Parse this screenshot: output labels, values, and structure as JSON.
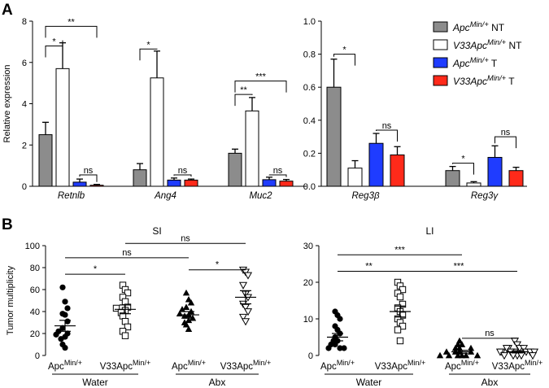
{
  "panel_labels": {
    "a": "A",
    "b": "B"
  },
  "chart_data": [
    {
      "type": "bar",
      "panel": "A-left",
      "ylabel": "Relative expression",
      "ylim": [
        0,
        8
      ],
      "yticks": [
        0,
        2,
        4,
        6,
        8
      ],
      "categories": [
        "Retnlb",
        "Ang4",
        "Muc2"
      ],
      "series": [
        {
          "name": "ApcMin/+ NT",
          "color": "#8c8c8c",
          "values": [
            2.5,
            0.8,
            1.6
          ],
          "errors": [
            0.6,
            0.3,
            0.2
          ]
        },
        {
          "name": "V33ApcMin/+ NT",
          "color": "#ffffff",
          "values": [
            5.7,
            5.25,
            3.65
          ],
          "errors": [
            1.25,
            1.3,
            0.65
          ]
        },
        {
          "name": "ApcMin/+ T",
          "color": "#1f3cff",
          "values": [
            0.2,
            0.3,
            0.32
          ],
          "errors": [
            0.15,
            0.1,
            0.12
          ]
        },
        {
          "name": "V33ApcMin/+ T",
          "color": "#ff2a1a",
          "values": [
            0.05,
            0.3,
            0.25
          ],
          "errors": [
            0.04,
            0.05,
            0.08
          ]
        }
      ],
      "annotations": [
        {
          "text": "*",
          "cat": 0,
          "s1": 0,
          "s2": 1,
          "level": 6.8
        },
        {
          "text": "**",
          "cat": 0,
          "s1": 0,
          "s2": 3,
          "level": 7.75
        },
        {
          "text": "ns",
          "cat": 0,
          "s1": 2,
          "s2": 3,
          "level": 0.55
        },
        {
          "text": "*",
          "cat": 1,
          "s1": 0,
          "s2": 1,
          "level": 6.65
        },
        {
          "text": "ns",
          "cat": 1,
          "s1": 2,
          "s2": 3,
          "level": 0.55
        },
        {
          "text": "**",
          "cat": 2,
          "s1": 0,
          "s2": 1,
          "level": 4.45
        },
        {
          "text": "***",
          "cat": 2,
          "s1": 0,
          "s2": 3,
          "level": 5.1
        },
        {
          "text": "ns",
          "cat": 2,
          "s1": 2,
          "s2": 3,
          "level": 0.55
        }
      ]
    },
    {
      "type": "bar",
      "panel": "A-right",
      "ylabel": "",
      "ylim": [
        0,
        1.0
      ],
      "yticks": [
        0.0,
        0.2,
        0.4,
        0.6,
        0.8,
        1.0
      ],
      "yticklabels": [
        "0.0",
        "0.2",
        "0.4",
        "0.6",
        "0.8",
        "1.0"
      ],
      "categories": [
        "Reg3β",
        "Reg3γ"
      ],
      "series": [
        {
          "name": "ApcMin/+ NT",
          "color": "#8c8c8c",
          "values": [
            0.6,
            0.095
          ],
          "errors": [
            0.17,
            0.025
          ]
        },
        {
          "name": "V33ApcMin/+ NT",
          "color": "#ffffff",
          "values": [
            0.11,
            0.02
          ],
          "errors": [
            0.045,
            0.008
          ]
        },
        {
          "name": "ApcMin/+ T",
          "color": "#1f3cff",
          "values": [
            0.26,
            0.175
          ],
          "errors": [
            0.06,
            0.07
          ]
        },
        {
          "name": "V33ApcMin/+ T",
          "color": "#ff2a1a",
          "values": [
            0.19,
            0.095
          ],
          "errors": [
            0.05,
            0.02
          ]
        }
      ],
      "annotations": [
        {
          "text": "*",
          "cat": 0,
          "s1": 0,
          "s2": 1,
          "level": 0.8
        },
        {
          "text": "ns",
          "cat": 0,
          "s1": 2,
          "s2": 3,
          "level": 0.34
        },
        {
          "text": "*",
          "cat": 1,
          "s1": 0,
          "s2": 1,
          "level": 0.14
        },
        {
          "text": "ns",
          "cat": 1,
          "s1": 2,
          "s2": 3,
          "level": 0.3
        }
      ],
      "legend": {
        "placement": "top-right",
        "entries": [
          {
            "base": "Apc",
            "sup": "Min/+",
            "suffix": " NT",
            "color": "#8c8c8c"
          },
          {
            "base": "V33Apc",
            "sup": "Min/+",
            "suffix": " NT",
            "color": "#ffffff"
          },
          {
            "base": "Apc",
            "sup": "Min/+",
            "suffix": " T",
            "color": "#1f3cff"
          },
          {
            "base": "V33Apc",
            "sup": "Min/+",
            "suffix": " T",
            "color": "#ff2a1a"
          }
        ]
      }
    },
    {
      "type": "scatter",
      "panel": "B-SI",
      "title": "SI",
      "ylabel": "Tumor multiplicity",
      "ylim": [
        0,
        100
      ],
      "yticks": [
        0,
        20,
        40,
        60,
        80,
        100
      ],
      "groups": [
        {
          "base": "Apc",
          "sup": "Min/+",
          "marker": "filled-circle",
          "mean": 27,
          "sem": 5,
          "points": [
            62,
            49,
            43,
            38,
            37,
            31,
            25,
            22,
            20,
            19,
            17,
            15,
            10,
            7
          ]
        },
        {
          "base": "V33Apc",
          "sup": "Min/+",
          "marker": "open-square",
          "mean": 42,
          "sem": 4,
          "points": [
            64,
            60,
            57,
            53,
            49,
            44,
            43,
            41,
            39,
            36,
            31,
            26,
            22,
            18
          ]
        },
        {
          "base": "Apc",
          "sup": "Min/+",
          "marker": "filled-triangle",
          "mean": 37,
          "sem": 3,
          "points": [
            57,
            51,
            48,
            44,
            42,
            40,
            38,
            37,
            36,
            34,
            32,
            30,
            28,
            24
          ]
        },
        {
          "base": "V33Apc",
          "sup": "Min/+",
          "marker": "open-triangle-down",
          "mean": 53,
          "sem": 6,
          "points": [
            78,
            76,
            73,
            64,
            56,
            53,
            47,
            44,
            40,
            35,
            31
          ]
        }
      ],
      "treatments": [
        "Water",
        "Abx"
      ],
      "annotations": [
        {
          "text": "*",
          "g1": 0,
          "g2": 1,
          "level": 74
        },
        {
          "text": "ns",
          "g1": 0,
          "g2": 2,
          "level": 89
        },
        {
          "text": "*",
          "g1": 2,
          "g2": 3,
          "level": 78
        },
        {
          "text": "ns",
          "g1": 1,
          "g2": 3,
          "level": 102
        }
      ]
    },
    {
      "type": "scatter",
      "panel": "B-LI",
      "title": "LI",
      "ylabel": "",
      "ylim": [
        0,
        30
      ],
      "yticks": [
        0,
        10,
        20,
        30
      ],
      "groups": [
        {
          "base": "Apc",
          "sup": "Min/+",
          "marker": "filled-circle",
          "mean": 5,
          "sem": 1,
          "points": [
            12,
            11,
            10,
            8,
            7,
            6,
            5,
            4,
            4,
            3,
            3,
            2,
            2,
            2
          ]
        },
        {
          "base": "V33Apc",
          "sup": "Min/+",
          "marker": "open-square",
          "mean": 12,
          "sem": 1.5,
          "points": [
            20,
            19,
            18,
            17,
            16,
            14,
            13,
            12,
            11,
            10,
            9,
            8,
            7,
            4
          ]
        },
        {
          "base": "Apc",
          "sup": "Min/+",
          "marker": "filled-triangle",
          "mean": 1,
          "sem": 0.4,
          "points": [
            4,
            3,
            3,
            2,
            2,
            2,
            1,
            1,
            1,
            1,
            0,
            0,
            0,
            0,
            0,
            0
          ]
        },
        {
          "base": "V33Apc",
          "sup": "Min/+",
          "marker": "open-triangle-down",
          "mean": 1,
          "sem": 0.3,
          "points": [
            4,
            3,
            2,
            2,
            2,
            2,
            1,
            1,
            1,
            1,
            1,
            1,
            1,
            0,
            0,
            0,
            0,
            0
          ]
        }
      ],
      "treatments": [
        "Water",
        "Abx"
      ],
      "annotations": [
        {
          "text": "**",
          "g1": 0,
          "g2": 1,
          "level": 23
        },
        {
          "text": "***",
          "g1": 0,
          "g2": 2,
          "level": 27.5
        },
        {
          "text": "***",
          "g1": 1,
          "g2": 3,
          "level": 23
        },
        {
          "text": "ns",
          "g1": 2,
          "g2": 3,
          "level": 4.7
        }
      ]
    }
  ]
}
